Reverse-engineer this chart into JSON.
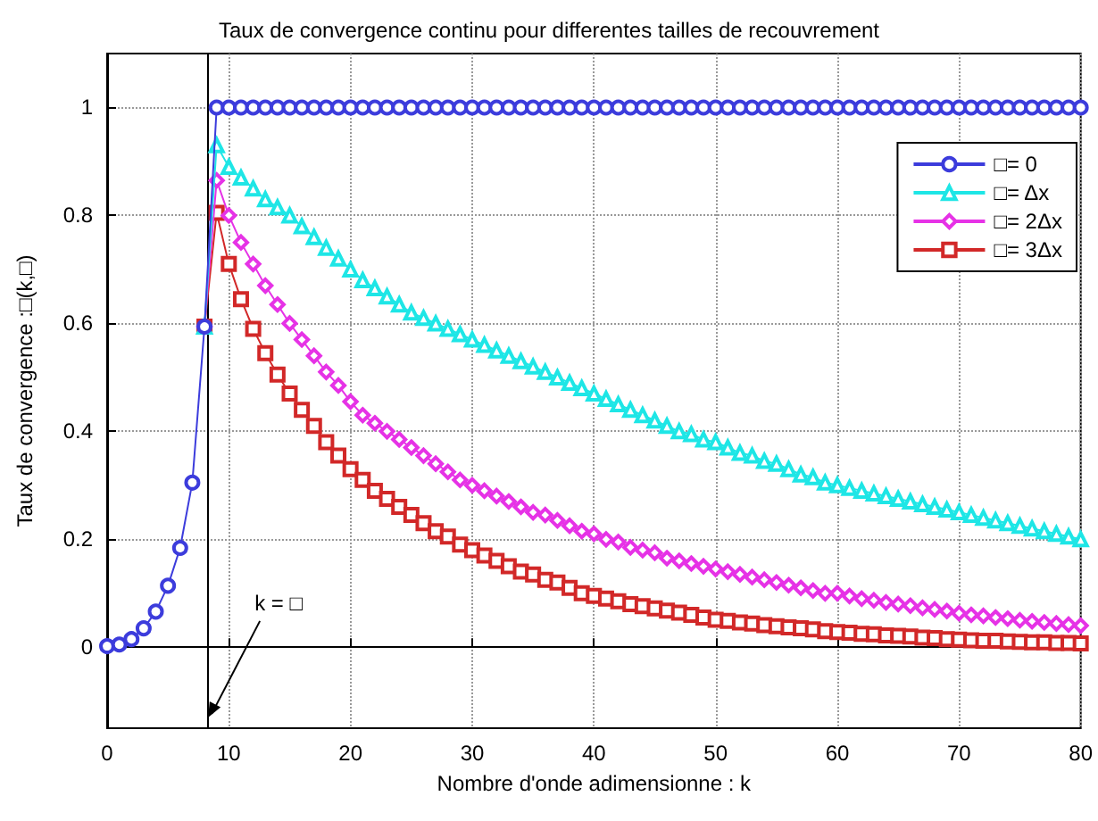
{
  "chart_data": {
    "type": "line",
    "title": "Taux de convergence continu pour differentes tailles de recouvrement",
    "xlabel": "Nombre d'onde adimensionne : k",
    "ylabel": "Taux de convergence :□(k,□)",
    "x": [
      0,
      1,
      2,
      3,
      4,
      5,
      6,
      7,
      8,
      9,
      10,
      11,
      12,
      13,
      14,
      15,
      16,
      17,
      18,
      19,
      20,
      21,
      22,
      23,
      24,
      25,
      26,
      27,
      28,
      29,
      30,
      31,
      32,
      33,
      34,
      35,
      36,
      37,
      38,
      39,
      40,
      41,
      42,
      43,
      44,
      45,
      46,
      47,
      48,
      49,
      50,
      51,
      52,
      53,
      54,
      55,
      56,
      57,
      58,
      59,
      60,
      61,
      62,
      63,
      64,
      65,
      66,
      67,
      68,
      69,
      70,
      71,
      72,
      73,
      74,
      75,
      76,
      77,
      78,
      79,
      80
    ],
    "series": [
      {
        "name": "□= 0",
        "color": "#3c3cdc",
        "marker": "circle",
        "values": [
          0.002,
          0.005,
          0.015,
          0.035,
          0.066,
          0.114,
          0.184,
          0.305,
          0.594,
          1,
          1,
          1,
          1,
          1,
          1,
          1,
          1,
          1,
          1,
          1,
          1,
          1,
          1,
          1,
          1,
          1,
          1,
          1,
          1,
          1,
          1,
          1,
          1,
          1,
          1,
          1,
          1,
          1,
          1,
          1,
          1,
          1,
          1,
          1,
          1,
          1,
          1,
          1,
          1,
          1,
          1,
          1,
          1,
          1,
          1,
          1,
          1,
          1,
          1,
          1,
          1,
          1,
          1,
          1,
          1,
          1,
          1,
          1,
          1,
          1,
          1,
          1,
          1,
          1,
          1,
          1,
          1,
          1,
          1,
          1,
          1
        ]
      },
      {
        "name": "□= Δx",
        "color": "#1ee6e6",
        "marker": "triangle",
        "values": [
          null,
          null,
          null,
          null,
          null,
          null,
          null,
          null,
          0.594,
          0.93,
          0.89,
          0.87,
          0.85,
          0.83,
          0.815,
          0.8,
          0.78,
          0.76,
          0.74,
          0.72,
          0.7,
          0.68,
          0.665,
          0.65,
          0.635,
          0.62,
          0.61,
          0.6,
          0.59,
          0.58,
          0.57,
          0.56,
          0.55,
          0.54,
          0.53,
          0.52,
          0.51,
          0.5,
          0.49,
          0.48,
          0.47,
          0.46,
          0.45,
          0.44,
          0.43,
          0.42,
          0.41,
          0.4,
          0.395,
          0.385,
          0.38,
          0.37,
          0.36,
          0.355,
          0.345,
          0.34,
          0.33,
          0.32,
          0.315,
          0.305,
          0.3,
          0.295,
          0.29,
          0.285,
          0.28,
          0.275,
          0.27,
          0.265,
          0.26,
          0.255,
          0.25,
          0.245,
          0.24,
          0.235,
          0.23,
          0.225,
          0.22,
          0.215,
          0.21,
          0.205,
          0.2
        ]
      },
      {
        "name": "□= 2Δx",
        "color": "#e632e6",
        "marker": "diamond",
        "values": [
          null,
          null,
          null,
          null,
          null,
          null,
          null,
          null,
          0.594,
          0.865,
          0.8,
          0.75,
          0.71,
          0.67,
          0.635,
          0.6,
          0.57,
          0.54,
          0.51,
          0.485,
          0.455,
          0.43,
          0.415,
          0.4,
          0.385,
          0.37,
          0.355,
          0.34,
          0.325,
          0.31,
          0.3,
          0.29,
          0.28,
          0.27,
          0.26,
          0.25,
          0.245,
          0.235,
          0.225,
          0.215,
          0.21,
          0.2,
          0.195,
          0.185,
          0.18,
          0.175,
          0.165,
          0.16,
          0.155,
          0.15,
          0.145,
          0.14,
          0.135,
          0.13,
          0.125,
          0.12,
          0.115,
          0.11,
          0.105,
          0.1,
          0.1,
          0.095,
          0.09,
          0.087,
          0.083,
          0.08,
          0.077,
          0.073,
          0.07,
          0.067,
          0.063,
          0.06,
          0.058,
          0.055,
          0.053,
          0.05,
          0.048,
          0.046,
          0.044,
          0.042,
          0.04
        ]
      },
      {
        "name": "□= 3Δx",
        "color": "#d22828",
        "marker": "square",
        "values": [
          null,
          null,
          null,
          null,
          null,
          null,
          null,
          null,
          0.594,
          0.805,
          0.71,
          0.645,
          0.59,
          0.545,
          0.505,
          0.47,
          0.44,
          0.41,
          0.38,
          0.355,
          0.33,
          0.31,
          0.29,
          0.275,
          0.26,
          0.245,
          0.23,
          0.215,
          0.205,
          0.19,
          0.18,
          0.17,
          0.16,
          0.15,
          0.14,
          0.135,
          0.125,
          0.12,
          0.11,
          0.1,
          0.095,
          0.09,
          0.085,
          0.08,
          0.076,
          0.072,
          0.068,
          0.064,
          0.06,
          0.055,
          0.051,
          0.049,
          0.046,
          0.044,
          0.041,
          0.039,
          0.037,
          0.035,
          0.033,
          0.03,
          0.028,
          0.027,
          0.025,
          0.024,
          0.022,
          0.021,
          0.02,
          0.018,
          0.017,
          0.015,
          0.014,
          0.013,
          0.012,
          0.012,
          0.011,
          0.01,
          0.009,
          0.009,
          0.008,
          0.008,
          0.007
        ]
      }
    ],
    "xlim": [
      0,
      80
    ],
    "xticks": [
      0,
      10,
      20,
      30,
      40,
      50,
      60,
      70,
      80
    ],
    "ylim": [
      -0.15,
      1.1
    ],
    "yticks": [
      0,
      0.2,
      0.4,
      0.6,
      0.8,
      1
    ],
    "grid": true,
    "legend": "top right",
    "line_style": "solid",
    "ref_lines": [
      {
        "axis": "x",
        "value": 8.3,
        "color": "#000000",
        "line_style": "solid"
      }
    ],
    "annotations": [
      {
        "text": "k = □",
        "x": 8.3,
        "y": -0.13
      }
    ]
  }
}
